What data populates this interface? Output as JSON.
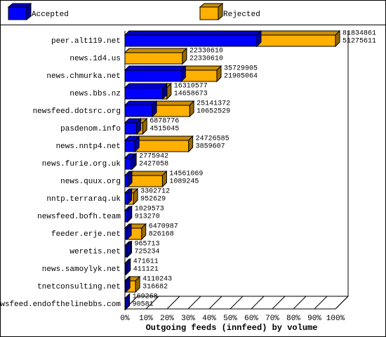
{
  "chart_data": {
    "type": "bar3d-overlay",
    "title": "Outgoing feeds (innfeed) by volume",
    "categories": [
      "peer.alt119.net",
      "news.1d4.us",
      "news.chmurka.net",
      "news.bbs.nz",
      "newsfeed.dotsrc.org",
      "pasdenom.info",
      "news.nntp4.net",
      "news.furie.org.uk",
      "news.quux.org",
      "nntp.terraraq.uk",
      "newsfeed.bofh.team",
      "feeder.erje.net",
      "weretis.net",
      "news.samoylyk.net",
      "tnetconsulting.net",
      "newsfeed.endofthelinebbs.com"
    ],
    "series": [
      {
        "name": "Accepted",
        "color": "#0000ff",
        "values": [
          51275611,
          22330610,
          21905064,
          14658673,
          10652529,
          4515045,
          3859607,
          2427058,
          1089245,
          952629,
          913270,
          826168,
          725234,
          411121,
          316682,
          90581
        ]
      },
      {
        "name": "Rejected",
        "color": "#ffb000",
        "values": [
          81834861,
          22330610,
          35729905,
          16310577,
          25141372,
          6878776,
          24726585,
          2775942,
          14561069,
          3302712,
          1029573,
          6470987,
          965713,
          471611,
          4110243,
          169268
        ]
      }
    ],
    "xlim": [
      0,
      81834861
    ],
    "xticks": [
      {
        "value": 0,
        "label": "0%"
      },
      {
        "value": 8183486.1,
        "label": "10%"
      },
      {
        "value": 16366972.2,
        "label": "20%"
      },
      {
        "value": 24550458.3,
        "label": "30%"
      },
      {
        "value": 32733944.4,
        "label": "40%"
      },
      {
        "value": 40917430.5,
        "label": "50%"
      },
      {
        "value": 49100916.6,
        "label": "60%"
      },
      {
        "value": 57284402.7,
        "label": "70%"
      },
      {
        "value": 65467888.8,
        "label": "80%"
      },
      {
        "value": 73651374.9,
        "label": "90%"
      },
      {
        "value": 81834861,
        "label": "100%"
      }
    ]
  }
}
